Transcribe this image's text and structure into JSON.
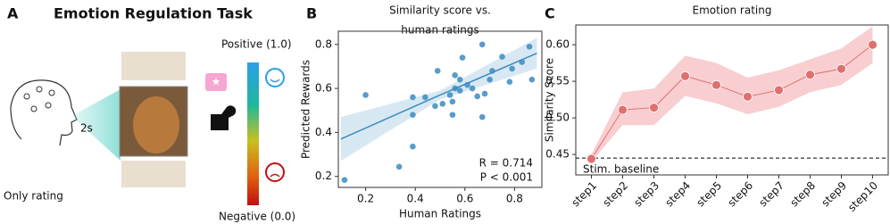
{
  "panel_a": {
    "panel_label": "A",
    "title": "Emotion Regulation Task",
    "duration": "2s",
    "caption": "Only rating",
    "positive": "Positive (1.0)",
    "negative": "Negative (0.0)"
  },
  "chart_data": [
    {
      "type": "scatter",
      "panel_label": "B",
      "title": [
        "Similarity score vs.",
        "human ratings"
      ],
      "x_label": "Human Ratings",
      "y_label": "Predicted Rewards",
      "color": "#3b8bc2",
      "x": [
        0.115,
        0.2,
        0.335,
        0.39,
        0.39,
        0.39,
        0.44,
        0.48,
        0.49,
        0.51,
        0.54,
        0.55,
        0.56,
        0.58,
        0.56,
        0.58,
        0.59,
        0.61,
        0.55,
        0.63,
        0.65,
        0.67,
        0.68,
        0.7,
        0.71,
        0.67,
        0.75,
        0.78,
        0.79,
        0.83,
        0.86,
        0.87
      ],
      "y": [
        0.184,
        0.57,
        0.244,
        0.56,
        0.48,
        0.336,
        0.56,
        0.52,
        0.68,
        0.53,
        0.57,
        0.48,
        0.6,
        0.59,
        0.66,
        0.64,
        0.74,
        0.616,
        0.54,
        0.6,
        0.564,
        0.47,
        0.576,
        0.64,
        0.68,
        0.8,
        0.744,
        0.63,
        0.69,
        0.72,
        0.79,
        0.64
      ],
      "fit": {
        "x": [
          0.1,
          0.5,
          0.89
        ],
        "y": [
          0.37,
          0.57,
          0.76
        ],
        "lower": [
          0.27,
          0.55,
          0.69
        ],
        "upper": [
          0.47,
          0.59,
          0.83
        ]
      },
      "annotations": [
        "R = 0.714",
        "P < 0.001"
      ],
      "xlim": [
        0.09,
        0.91
      ],
      "ylim": [
        0.15,
        0.86
      ],
      "xticks": [
        0.2,
        0.4,
        0.6,
        0.8
      ],
      "yticks": [
        0.2,
        0.4,
        0.6,
        0.8
      ]
    },
    {
      "type": "line",
      "panel_label": "C",
      "title": "Emotion rating",
      "y_label": "Similarity Score",
      "color": "#e07070",
      "band_color": "#f7c5c8",
      "categories": [
        "step1",
        "step2",
        "step3",
        "step4",
        "step5",
        "step6",
        "step7",
        "step8",
        "step9",
        "step10"
      ],
      "values": [
        0.444,
        0.511,
        0.514,
        0.557,
        0.545,
        0.529,
        0.538,
        0.559,
        0.567,
        0.6
      ],
      "lower": [
        0.44,
        0.49,
        0.49,
        0.53,
        0.52,
        0.505,
        0.515,
        0.535,
        0.545,
        0.575
      ],
      "upper": [
        0.45,
        0.535,
        0.54,
        0.585,
        0.575,
        0.555,
        0.565,
        0.58,
        0.595,
        0.625
      ],
      "baseline": {
        "value": 0.445,
        "label": "Stim. baseline"
      },
      "ylim": [
        0.422,
        0.627
      ],
      "yticks": [
        0.45,
        {
          "value": 0.5,
          "label": "0.50"
        },
        0.55,
        {
          "value": 0.6,
          "label": "0.60"
        }
      ]
    }
  ]
}
